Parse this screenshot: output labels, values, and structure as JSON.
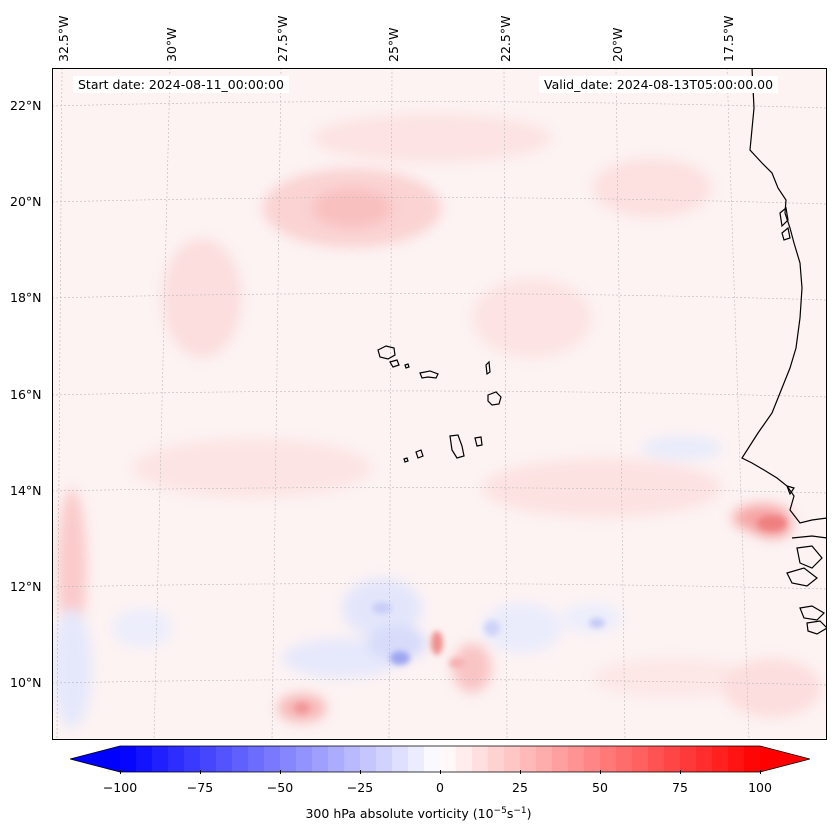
{
  "map": {
    "start_date": "Start date: 2024-08-11_00:00:00",
    "valid_date": "Valid_date: 2024-08-13T05:00:00.00",
    "lon_labels": [
      "32.5°W",
      "30°W",
      "27.5°W",
      "25°W",
      "22.5°W",
      "20°W",
      "17.5°W"
    ],
    "lat_labels": [
      "22°N",
      "20°N",
      "18°N",
      "16°N",
      "14°N",
      "12°N",
      "10°N"
    ],
    "region": "Eastern Atlantic with Cape Verde islands and West African coast",
    "gridlines": true,
    "coastline_color": "#000000"
  },
  "colorbar": {
    "ticks": [
      "−100",
      "−75",
      "−50",
      "−25",
      "0",
      "25",
      "50",
      "75",
      "100"
    ],
    "label_prefix": "300 hPa absolute vorticity (10",
    "label_exp1": "−5",
    "label_mid": "s",
    "label_exp2": "−1",
    "label_suffix": ")",
    "min": -100,
    "max": 100,
    "colormap": "bwr",
    "neg_color": "#0000ff",
    "pos_color": "#ff0000",
    "zero_color": "#ffffff"
  }
}
